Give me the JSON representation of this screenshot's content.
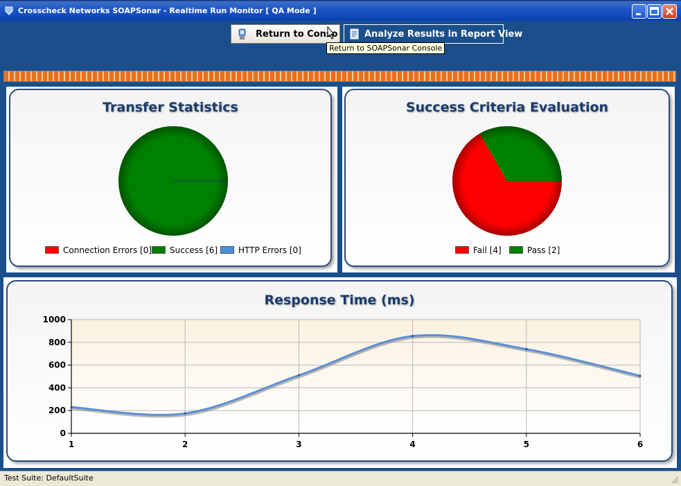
{
  "window": {
    "title": "Crosscheck Networks SOAPSonar - Realtime Run Monitor [ QA Mode ]"
  },
  "toolbar": {
    "return_label": "Return to Console",
    "analyze_label": "Analyze Results in Report View",
    "tooltip": "Return to SOAPSonar Console"
  },
  "transfer_statistics": {
    "title": "Transfer Statistics",
    "legend": [
      {
        "label": "Connection Errors [0]",
        "color": "#ff0000"
      },
      {
        "label": "Success [6]",
        "color": "#008000"
      },
      {
        "label": "HTTP Errors [0]",
        "color": "#4a90e2"
      }
    ]
  },
  "success_criteria": {
    "title": "Success Criteria Evaluation",
    "legend": [
      {
        "label": "Fail [4]",
        "color": "#ff0000"
      },
      {
        "label": "Pass [2]",
        "color": "#008000"
      }
    ]
  },
  "response_time": {
    "title": "Response Time (ms)"
  },
  "status": {
    "text": "Test Suite: DefaultSuite"
  },
  "chart_data": [
    {
      "type": "pie",
      "title": "Transfer Statistics",
      "labels": [
        "Connection Errors",
        "Success",
        "HTTP Errors"
      ],
      "values": [
        0,
        6,
        0
      ],
      "colors": [
        "#ff0000",
        "#008000",
        "#4a90e2"
      ]
    },
    {
      "type": "pie",
      "title": "Success Criteria Evaluation",
      "labels": [
        "Fail",
        "Pass"
      ],
      "values": [
        4,
        2
      ],
      "colors": [
        "#ff0000",
        "#008000"
      ]
    },
    {
      "type": "line",
      "title": "Response Time (ms)",
      "x": [
        1,
        2,
        3,
        4,
        5,
        6
      ],
      "y": [
        230,
        175,
        510,
        855,
        740,
        505
      ],
      "xticks": [
        "1",
        "2",
        "3",
        "4",
        "5",
        "6"
      ],
      "yticks": [
        "0",
        "200",
        "400",
        "600",
        "800",
        "1000"
      ],
      "ylim": [
        0,
        1000
      ],
      "xlim": [
        1,
        6
      ],
      "grid": true,
      "color": "#5b8fd6"
    }
  ]
}
